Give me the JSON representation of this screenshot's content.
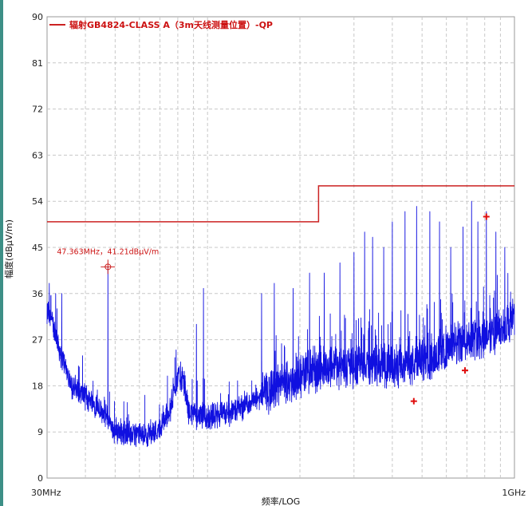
{
  "chart_data": {
    "type": "line",
    "title": "",
    "xlabel": "频率/LOG",
    "ylabel": "幅度(dBμV/m)",
    "x_scale": "log",
    "x_tick_labels": [
      "30MHz",
      "1GHz"
    ],
    "xlim_mhz": [
      30,
      1000
    ],
    "ylim": [
      0,
      90
    ],
    "y_ticks": [
      0,
      9,
      18,
      27,
      36,
      45,
      54,
      63,
      72,
      81,
      90
    ],
    "grid": true,
    "legend": {
      "position": "top-left",
      "entries": [
        "辐射GB4824-CLASS A（3m天线测量位置）-QP"
      ]
    },
    "limit_line": {
      "name": "辐射GB4824-CLASS A（3m天线测量位置）-QP",
      "color": "#cc2222",
      "segments": [
        {
          "x_start_mhz": 30,
          "x_end_mhz": 230,
          "value": 50
        },
        {
          "x_start_mhz": 230,
          "x_end_mhz": 1000,
          "value": 57
        }
      ]
    },
    "measurement": {
      "color": "#1010e0",
      "baseline": [
        {
          "x_mhz": 30,
          "y": 33
        },
        {
          "x_mhz": 31,
          "y": 31
        },
        {
          "x_mhz": 33,
          "y": 25
        },
        {
          "x_mhz": 36,
          "y": 18
        },
        {
          "x_mhz": 40,
          "y": 16
        },
        {
          "x_mhz": 44,
          "y": 14
        },
        {
          "x_mhz": 47,
          "y": 12
        },
        {
          "x_mhz": 49,
          "y": 9.5
        },
        {
          "x_mhz": 55,
          "y": 8.5
        },
        {
          "x_mhz": 62,
          "y": 8.5
        },
        {
          "x_mhz": 70,
          "y": 9.5
        },
        {
          "x_mhz": 76,
          "y": 14
        },
        {
          "x_mhz": 80,
          "y": 20
        },
        {
          "x_mhz": 83,
          "y": 19
        },
        {
          "x_mhz": 87,
          "y": 13
        },
        {
          "x_mhz": 95,
          "y": 12
        },
        {
          "x_mhz": 105,
          "y": 12
        },
        {
          "x_mhz": 120,
          "y": 13
        },
        {
          "x_mhz": 140,
          "y": 15
        },
        {
          "x_mhz": 160,
          "y": 17
        },
        {
          "x_mhz": 190,
          "y": 19
        },
        {
          "x_mhz": 220,
          "y": 21
        },
        {
          "x_mhz": 260,
          "y": 22
        },
        {
          "x_mhz": 300,
          "y": 22
        },
        {
          "x_mhz": 350,
          "y": 22
        },
        {
          "x_mhz": 400,
          "y": 22
        },
        {
          "x_mhz": 450,
          "y": 22
        },
        {
          "x_mhz": 500,
          "y": 23
        },
        {
          "x_mhz": 600,
          "y": 25
        },
        {
          "x_mhz": 700,
          "y": 27
        },
        {
          "x_mhz": 800,
          "y": 28
        },
        {
          "x_mhz": 900,
          "y": 29
        },
        {
          "x_mhz": 1000,
          "y": 31
        }
      ],
      "peaks": [
        {
          "x_mhz": 30.5,
          "y": 38
        },
        {
          "x_mhz": 32,
          "y": 36
        },
        {
          "x_mhz": 33.5,
          "y": 36
        },
        {
          "x_mhz": 47.363,
          "y": 41.2
        },
        {
          "x_mhz": 79,
          "y": 25
        },
        {
          "x_mhz": 92,
          "y": 30
        },
        {
          "x_mhz": 97,
          "y": 37
        },
        {
          "x_mhz": 150,
          "y": 36
        },
        {
          "x_mhz": 165,
          "y": 38
        },
        {
          "x_mhz": 190,
          "y": 37
        },
        {
          "x_mhz": 215,
          "y": 40
        },
        {
          "x_mhz": 240,
          "y": 40
        },
        {
          "x_mhz": 270,
          "y": 42
        },
        {
          "x_mhz": 300,
          "y": 44
        },
        {
          "x_mhz": 325,
          "y": 48
        },
        {
          "x_mhz": 345,
          "y": 47
        },
        {
          "x_mhz": 375,
          "y": 45
        },
        {
          "x_mhz": 400,
          "y": 50
        },
        {
          "x_mhz": 440,
          "y": 52
        },
        {
          "x_mhz": 480,
          "y": 53
        },
        {
          "x_mhz": 530,
          "y": 52
        },
        {
          "x_mhz": 570,
          "y": 50
        },
        {
          "x_mhz": 620,
          "y": 45
        },
        {
          "x_mhz": 680,
          "y": 49
        },
        {
          "x_mhz": 725,
          "y": 54
        },
        {
          "x_mhz": 760,
          "y": 50
        },
        {
          "x_mhz": 810,
          "y": 52
        },
        {
          "x_mhz": 870,
          "y": 48
        },
        {
          "x_mhz": 930,
          "y": 45
        }
      ]
    },
    "qp_points": [
      {
        "x_mhz": 470,
        "y": 15
      },
      {
        "x_mhz": 690,
        "y": 21
      },
      {
        "x_mhz": 810,
        "y": 51
      }
    ],
    "annotation": {
      "x_mhz": 47.363,
      "y": 41.21,
      "text": "47.363MHz，41.21dBμV/m"
    }
  }
}
